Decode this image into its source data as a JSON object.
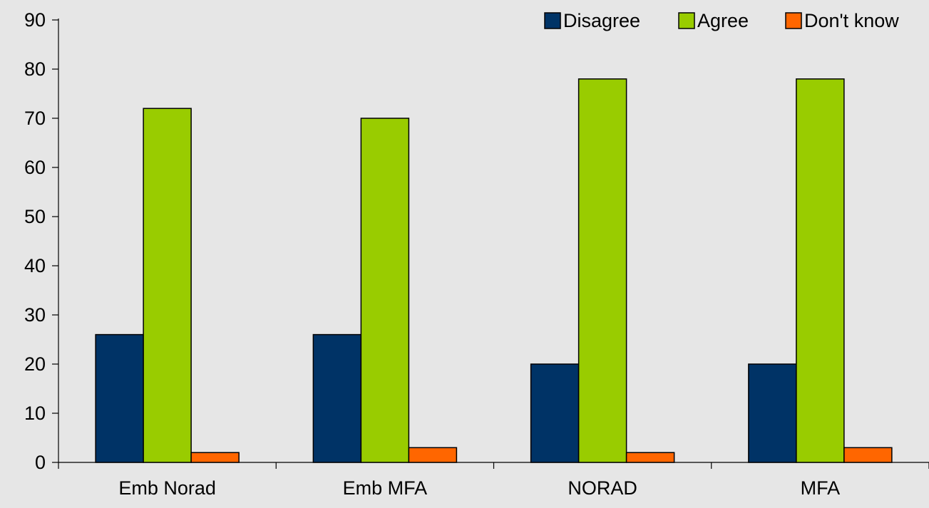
{
  "chart_data": {
    "type": "bar",
    "title": "",
    "xlabel": "",
    "ylabel": "",
    "categories": [
      "Emb Norad",
      "Emb MFA",
      "NORAD",
      "MFA"
    ],
    "series": [
      {
        "name": "Disagree",
        "values": [
          26,
          26,
          20,
          20
        ],
        "color": "#003366"
      },
      {
        "name": "Agree",
        "values": [
          72,
          70,
          78,
          78
        ],
        "color": "#99cc00"
      },
      {
        "name": "Don't know",
        "values": [
          2,
          3,
          2,
          3
        ],
        "color": "#ff6600"
      }
    ],
    "ylim": [
      0,
      90
    ],
    "yticks": [
      0,
      10,
      20,
      30,
      40,
      50,
      60,
      70,
      80,
      90
    ],
    "ytick_labels": [
      "0",
      "10",
      "20",
      "30",
      "40",
      "50",
      "60",
      "70",
      "80",
      "90"
    ],
    "grid": false,
    "legend_position": "top-right",
    "background_color": "#e6e6e6",
    "axis_color": "#000000"
  }
}
